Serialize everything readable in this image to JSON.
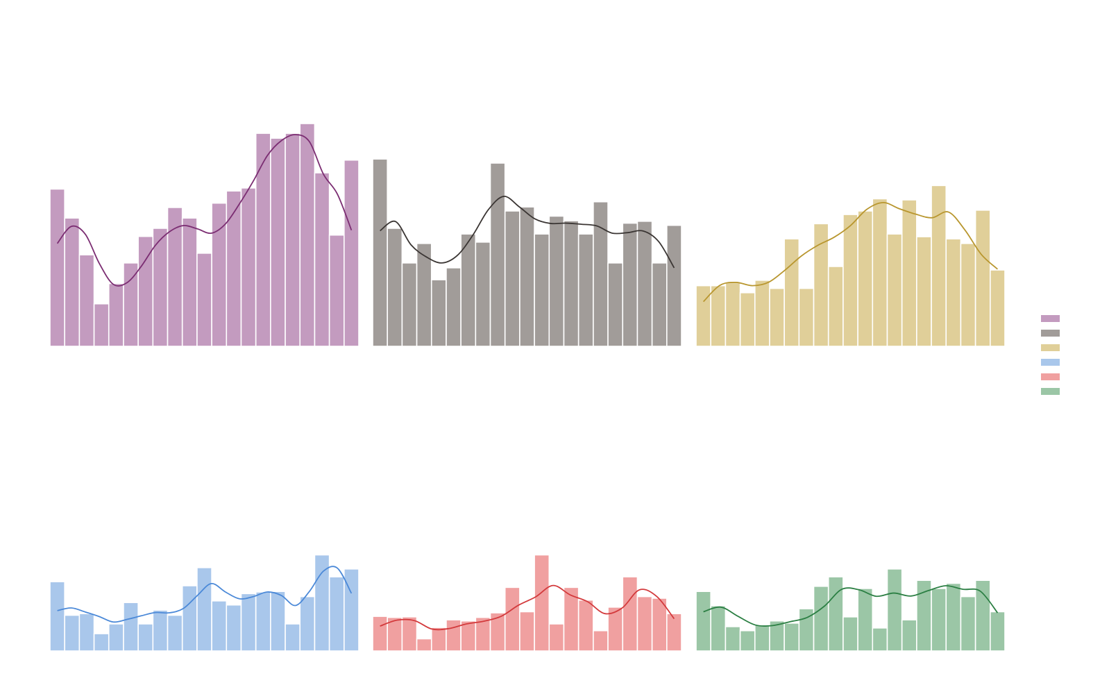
{
  "chart_data": [
    {
      "type": "bar",
      "overlay": "kde-line",
      "color": "#c39bbf",
      "line_color": "#7b2d72",
      "ylim": [
        0,
        100
      ],
      "values": [
        58.1,
        47.4,
        33.8,
        15.7,
        23.2,
        30.8,
        40.6,
        43.6,
        51.3,
        47.4,
        34.4,
        52.9,
        57.4,
        58.5,
        78.7,
        76.9,
        78.7,
        82.3,
        64.1,
        41.1,
        68.8
      ],
      "kde": [
        38.0,
        44.3,
        41.4,
        30.6,
        22.9,
        23.6,
        29.6,
        37.3,
        42.3,
        44.6,
        43.4,
        41.8,
        45.2,
        52.6,
        61.1,
        70.5,
        76.0,
        78.2,
        75.6,
        63.6,
        56.2,
        42.9
      ]
    },
    {
      "type": "bar",
      "overlay": "kde-line",
      "color": "#a19c99",
      "line_color": "#3a3533",
      "ylim": [
        0,
        100
      ],
      "values": [
        69.2,
        43.6,
        30.8,
        38.0,
        24.6,
        29.0,
        41.5,
        38.5,
        67.7,
        50.0,
        51.5,
        41.5,
        48.1,
        46.4,
        41.5,
        53.4,
        30.8,
        45.5,
        46.2,
        30.8,
        44.7
      ],
      "kde": [
        42.7,
        46.1,
        37.5,
        33.0,
        30.8,
        33.6,
        41.1,
        50.5,
        55.4,
        51.5,
        47.1,
        45.4,
        45.5,
        45.1,
        44.5,
        41.8,
        42.0,
        42.6,
        38.7,
        29.0
      ]
    },
    {
      "type": "bar",
      "overlay": "kde-line",
      "color": "#e0cf99",
      "line_color": "#b8962e",
      "ylim": [
        0,
        100
      ],
      "values": [
        22.4,
        22.4,
        23.5,
        19.8,
        24.4,
        21.4,
        39.7,
        21.4,
        45.3,
        29.5,
        48.7,
        50.0,
        54.5,
        41.5,
        54.1,
        40.5,
        59.4,
        39.7,
        38.0,
        50.3,
        28.2
      ],
      "kde": [
        16.5,
        22.5,
        23.6,
        22.4,
        23.7,
        28.2,
        33.4,
        37.3,
        40.3,
        44.6,
        50.6,
        53.1,
        50.8,
        48.8,
        47.5,
        49.6,
        43.0,
        34.0,
        28.5
      ]
    },
    {
      "type": "bar",
      "overlay": "kde-line",
      "color": "#a9c7eb",
      "line_color": "#4b89d8",
      "ylim": [
        0,
        100
      ],
      "values": [
        25.6,
        13.2,
        13.8,
        6.4,
        10.0,
        17.9,
        10.0,
        15.1,
        13.2,
        24.1,
        30.8,
        18.5,
        17.0,
        21.2,
        21.8,
        22.0,
        10.0,
        20.1,
        35.5,
        27.4,
        30.3
      ],
      "kde": [
        14.9,
        15.9,
        14.4,
        12.7,
        10.7,
        11.7,
        13.0,
        14.2,
        14.1,
        15.7,
        20.5,
        24.9,
        21.8,
        19.3,
        20.1,
        21.8,
        20.5,
        16.8,
        22.0,
        29.5,
        30.6,
        21.3
      ]
    },
    {
      "type": "bar",
      "overlay": "kde-line",
      "color": "#f0a0a0",
      "line_color": "#d33a3c",
      "ylim": [
        0,
        100
      ],
      "values": [
        12.8,
        12.4,
        12.6,
        4.5,
        8.7,
        11.5,
        11.1,
        12.4,
        14.1,
        23.5,
        14.5,
        35.5,
        10.0,
        23.5,
        18.8,
        7.5,
        16.2,
        27.4,
        20.1,
        19.5,
        13.8
      ],
      "kde": [
        9.2,
        11.4,
        11.2,
        8.1,
        8.3,
        10.0,
        11.0,
        12.8,
        16.9,
        20.0,
        24.2,
        20.7,
        18.2,
        13.8,
        15.9,
        22.6,
        20.1,
        11.9
      ]
    },
    {
      "type": "bar",
      "overlay": "kde-line",
      "color": "#9bc6a6",
      "line_color": "#2b7f43",
      "ylim": [
        0,
        100
      ],
      "values": [
        22.0,
        16.7,
        9.0,
        7.5,
        9.6,
        11.1,
        10.3,
        15.6,
        23.9,
        27.4,
        12.6,
        23.1,
        8.5,
        30.3,
        11.5,
        26.1,
        23.1,
        25.0,
        20.1,
        26.1,
        14.5
      ],
      "kde": [
        14.5,
        16.2,
        12.8,
        9.6,
        9.4,
        10.8,
        12.4,
        16.6,
        22.8,
        22.6,
        20.2,
        21.4,
        20.3,
        22.3,
        24.1,
        22.8,
        22.1,
        14.1
      ]
    }
  ],
  "legend": {
    "placement": "right",
    "swatches": [
      "#c39bbf",
      "#a19c99",
      "#e0cf99",
      "#a9c7eb",
      "#f0a0a0",
      "#9bc6a6"
    ]
  }
}
